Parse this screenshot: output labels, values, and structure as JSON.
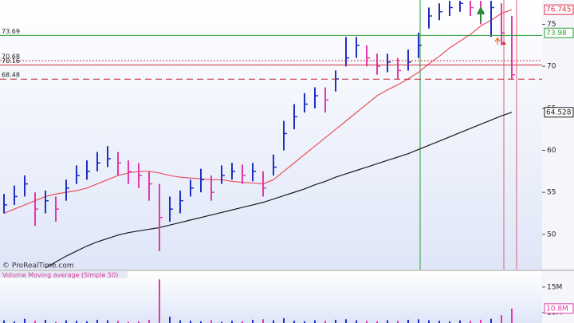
{
  "chart_data": {
    "type": "ohlc",
    "watermark": "© ProRealTime.com",
    "up_color": "#1f2fbf",
    "down_color": "#e03aa8",
    "ylim": [
      45.8,
      77.9
    ],
    "yticks": [
      50,
      55,
      60,
      65,
      70,
      75
    ],
    "close": [
      53.5,
      54.5,
      56,
      53,
      54,
      53,
      55.5,
      57,
      57.5,
      58.5,
      59,
      58.5,
      57.5,
      57,
      56,
      52,
      53,
      54,
      55.5,
      56.5,
      55,
      57,
      57.5,
      57,
      57.5,
      55.5,
      58,
      62,
      64,
      65.5,
      66.5,
      66,
      68.5,
      71,
      72.5,
      71,
      70,
      70.5,
      69.5,
      70.5,
      72.5,
      76,
      76.5,
      77,
      77.5,
      77,
      76.5,
      77,
      74,
      69
    ],
    "high": [
      54.8,
      55.8,
      57,
      55,
      55.2,
      54.5,
      56.5,
      58.2,
      58.8,
      59.8,
      60.5,
      59.8,
      58.8,
      58.5,
      57.5,
      56,
      54.5,
      55.2,
      56.5,
      57.8,
      57,
      58.2,
      58.5,
      58.3,
      58.5,
      57.5,
      59.5,
      63.5,
      65.5,
      66.8,
      67.5,
      67.5,
      69.5,
      73.5,
      73.5,
      72.5,
      71.5,
      71.5,
      71,
      72,
      74,
      77,
      77.5,
      77.8,
      77.8,
      77.8,
      77.8,
      77.8,
      77.5,
      76
    ],
    "low": [
      52.5,
      53.5,
      54.5,
      51,
      52.5,
      51.5,
      54,
      56,
      56.5,
      57.5,
      58,
      57,
      56,
      55.5,
      54,
      48,
      51.5,
      52.5,
      54.5,
      55,
      54,
      56,
      56.5,
      56,
      56.3,
      54.5,
      57,
      60,
      62.5,
      64.5,
      65,
      64.5,
      67,
      70,
      71,
      70,
      69,
      69.3,
      68.5,
      69.5,
      71,
      74.5,
      75.5,
      76,
      76.5,
      76,
      75,
      73.5,
      72.5,
      68.5
    ],
    "series": [
      {
        "color": "#e8505a",
        "values": [
          52.5,
          53,
          53.5,
          54,
          54.5,
          54.8,
          55,
          55.2,
          55.5,
          56,
          56.5,
          57,
          57.3,
          57.5,
          57.5,
          57.3,
          57,
          56.8,
          56.7,
          56.6,
          56.5,
          56.5,
          56.3,
          56.2,
          56.1,
          56,
          56.5,
          57.5,
          58.5,
          59.5,
          60.5,
          61.5,
          62.5,
          63.5,
          64.5,
          65.5,
          66.5,
          67.2,
          67.8,
          68.5,
          69.3,
          70.3,
          71.2,
          72.2,
          73,
          73.8,
          74.8,
          75.5,
          76.3,
          76.745
        ]
      },
      {
        "color": "#1a1a1a",
        "values": [
          null,
          null,
          null,
          null,
          46,
          46.7,
          47.4,
          48,
          48.6,
          49.1,
          49.5,
          49.9,
          50.2,
          50.4,
          50.6,
          50.8,
          51.1,
          51.4,
          51.7,
          52,
          52.3,
          52.6,
          52.9,
          53.2,
          53.5,
          53.8,
          54.2,
          54.6,
          55,
          55.4,
          55.9,
          56.3,
          56.8,
          57.2,
          57.6,
          58,
          58.4,
          58.8,
          59.2,
          59.6,
          60.1,
          60.6,
          61.1,
          61.6,
          62.1,
          62.6,
          63.1,
          63.6,
          64.1,
          64.528
        ]
      }
    ],
    "levels": [
      {
        "value": 73.69,
        "color": "#2e9b3b",
        "dash": "none"
      },
      {
        "value": 70.68,
        "color": "#d03040",
        "dash": "2,2"
      },
      {
        "value": 70.16,
        "color": "#d03040",
        "dash": "none"
      },
      {
        "value": 68.48,
        "color": "#c02030",
        "dash": "8,5"
      }
    ],
    "last_values": [
      {
        "value": 76.745,
        "color": "#e0304a"
      },
      {
        "value": 73.98,
        "color": "#2e9b3b"
      },
      {
        "value": 64.528,
        "color": "#1a1a1a"
      }
    ],
    "volume": {
      "title": "Volume Moving average (Simple 50)",
      "ylim": [
        7.97,
        17.8
      ],
      "yticks": [
        {
          "value": 15,
          "label": "15M"
        },
        {
          "value": 10,
          "label": "10M"
        }
      ],
      "values": [
        8.5,
        8.3,
        8.8,
        8.4,
        8.6,
        8.2,
        8.5,
        8.4,
        8.3,
        8.6,
        8.5,
        8.4,
        8.2,
        8.3,
        8.6,
        16.5,
        9.2,
        8.5,
        8.4,
        8.3,
        8.5,
        8.2,
        8.4,
        8.3,
        8.6,
        8.7,
        8.5,
        8.9,
        8.4,
        8.3,
        8.5,
        8.4,
        8.6,
        8.7,
        8.5,
        8.4,
        8.3,
        8.5,
        8.4,
        8.6,
        8.7,
        8.5,
        8.4,
        8.3,
        8.5,
        8.4,
        8.6,
        8.8,
        9.5,
        10.8
      ],
      "last": {
        "value": 10.8,
        "label": "10.8M"
      }
    }
  }
}
